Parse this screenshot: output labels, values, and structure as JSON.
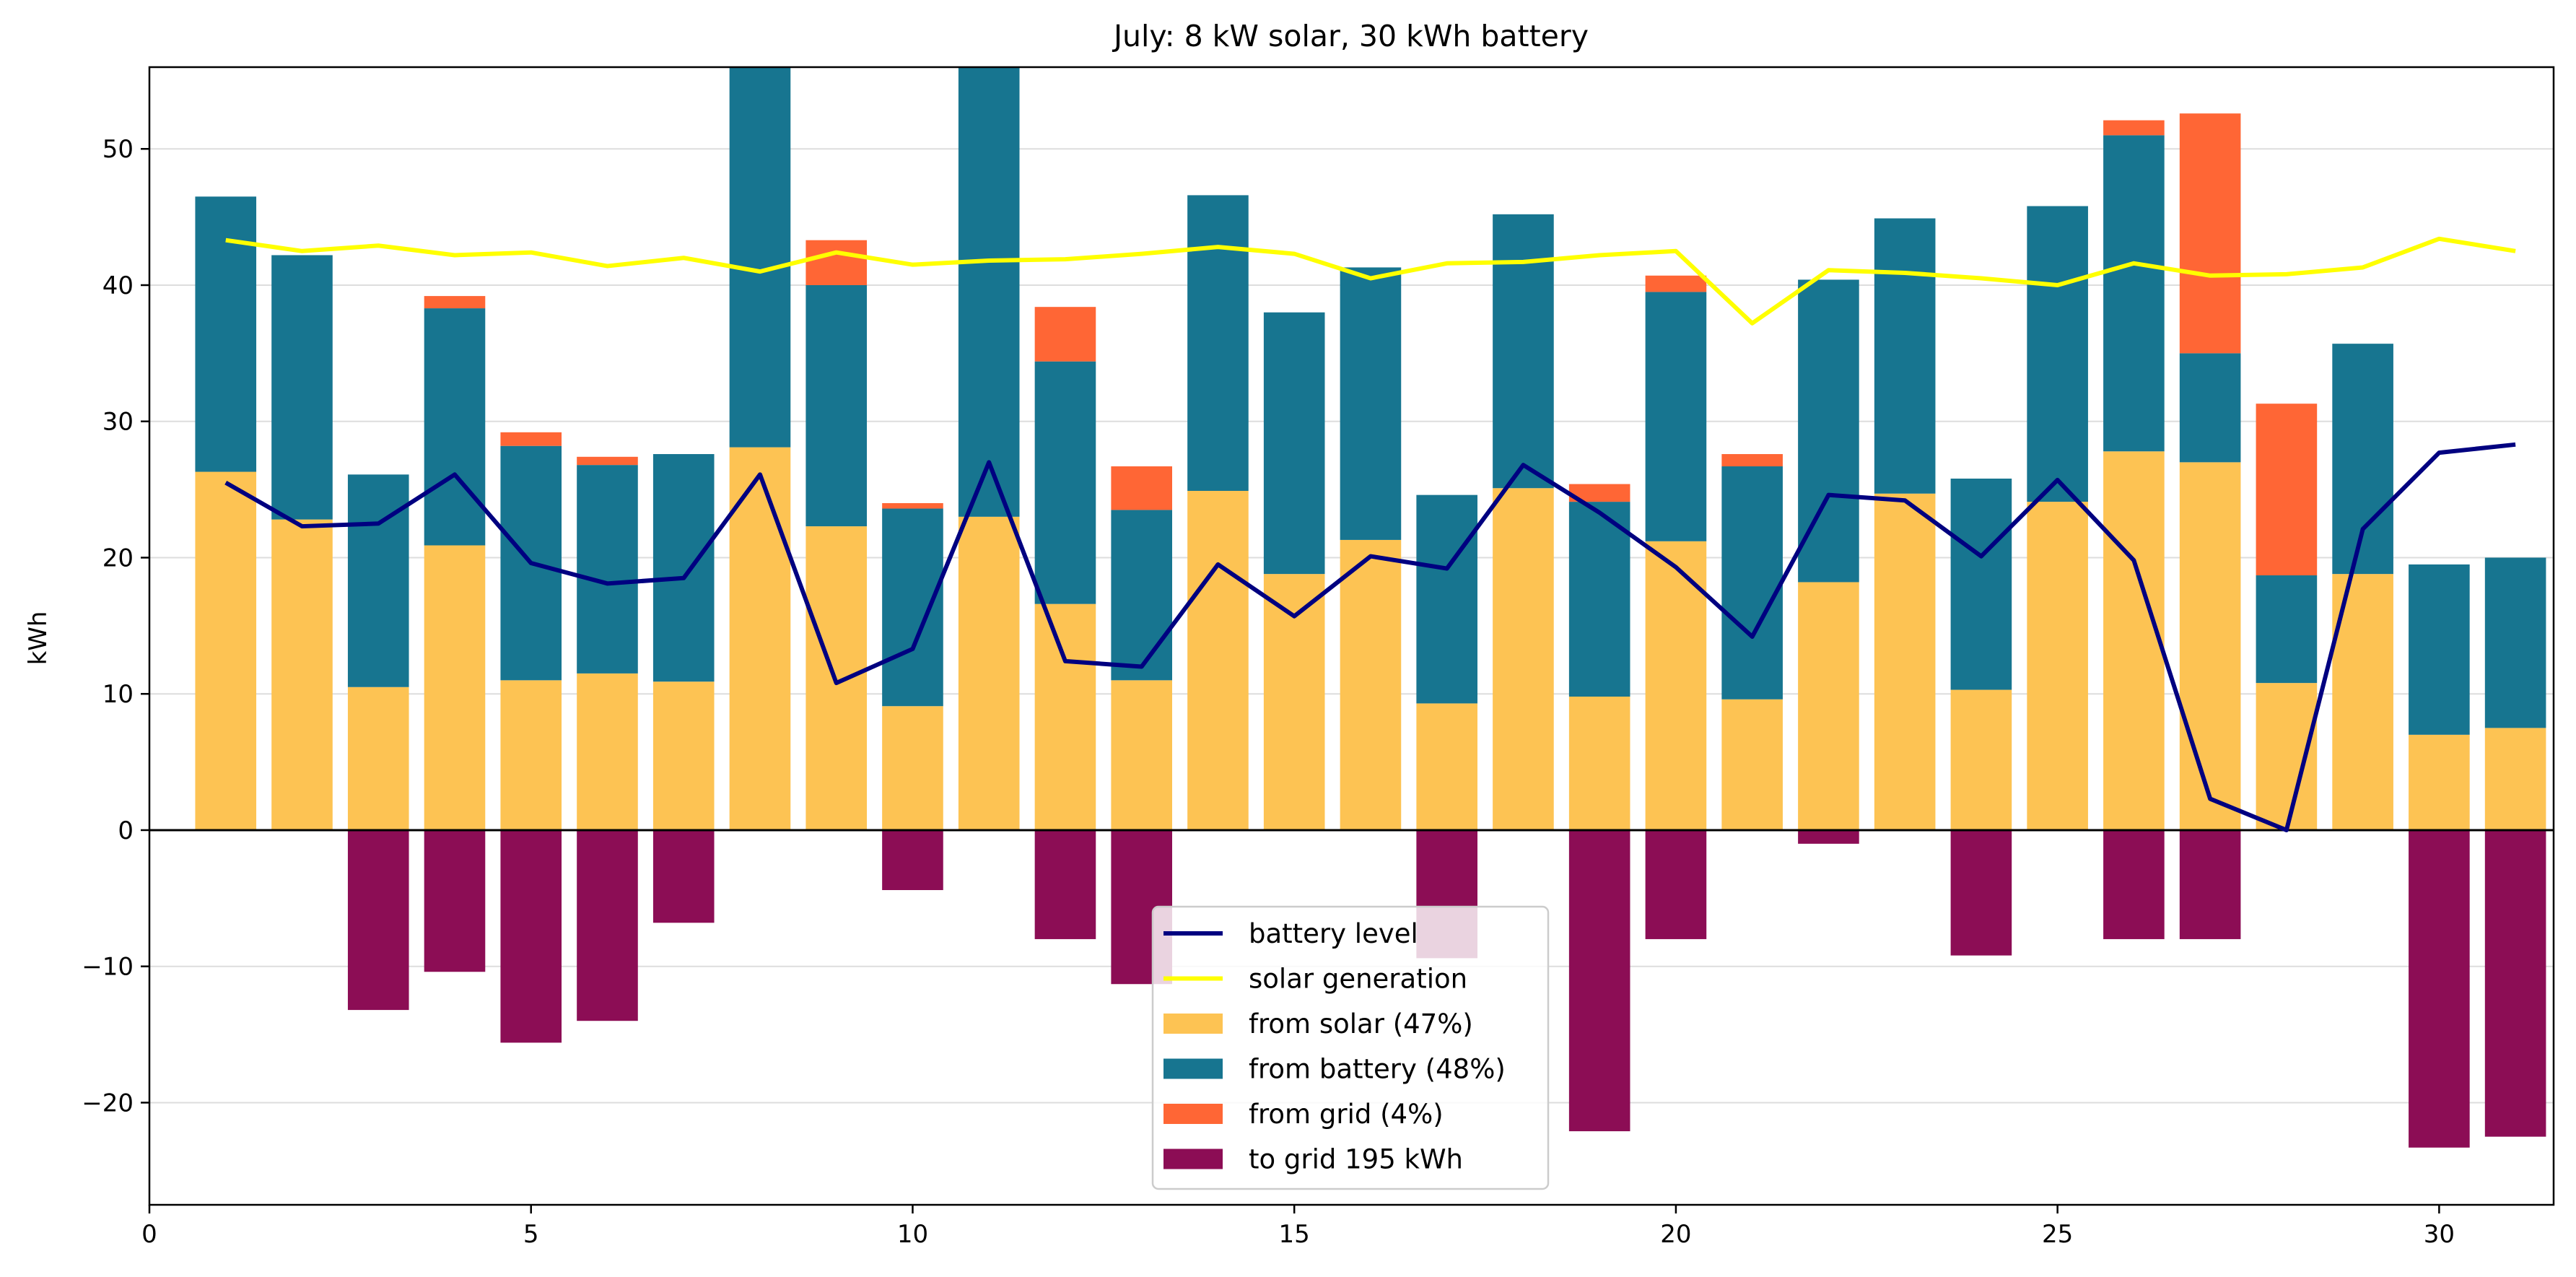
{
  "chart_data": {
    "type": "bar",
    "title": "July: 8 kW solar, 30 kWh battery",
    "xlabel": "",
    "ylabel": "kWh",
    "xlim": [
      0,
      31.5
    ],
    "ylim": [
      -27.5,
      56
    ],
    "xticks": [
      0,
      5,
      10,
      15,
      20,
      25,
      30
    ],
    "yticks": [
      -20,
      -10,
      0,
      10,
      20,
      30,
      40,
      50
    ],
    "grid": "horizontal",
    "legend_position": "bottom-center",
    "days": [
      1,
      2,
      3,
      4,
      5,
      6,
      7,
      8,
      9,
      10,
      11,
      12,
      13,
      14,
      15,
      16,
      17,
      18,
      19,
      20,
      21,
      22,
      23,
      24,
      25,
      26,
      27,
      28,
      29,
      30,
      31
    ],
    "series": [
      {
        "name": "from solar (47%)",
        "kind": "bar",
        "color": "#FDC353",
        "values": [
          26.3,
          22.8,
          10.5,
          20.9,
          11.0,
          11.5,
          10.9,
          28.1,
          22.3,
          9.1,
          23.0,
          16.6,
          11.0,
          24.9,
          18.8,
          21.3,
          9.3,
          25.1,
          9.8,
          21.2,
          9.6,
          18.2,
          24.7,
          10.3,
          24.1,
          27.8,
          27.0,
          10.8,
          18.8,
          7.0,
          7.5
        ]
      },
      {
        "name": "from battery (48%)",
        "kind": "bar",
        "color": "#177590",
        "values": [
          20.2,
          19.4,
          15.6,
          17.4,
          17.2,
          15.3,
          16.7,
          27.9,
          17.7,
          14.5,
          33.0,
          17.8,
          12.5,
          21.7,
          19.2,
          20.0,
          15.3,
          20.1,
          14.3,
          18.3,
          17.1,
          22.2,
          20.2,
          15.5,
          21.7,
          23.2,
          8.0,
          7.9,
          16.9,
          12.5,
          12.5
        ]
      },
      {
        "name": "from grid (4%)",
        "kind": "bar",
        "color": "#FF6635",
        "values": [
          0,
          0,
          0,
          0.9,
          1.0,
          0.6,
          0,
          0,
          3.3,
          0.4,
          0,
          4.0,
          3.2,
          0,
          0,
          0,
          0,
          0,
          1.3,
          1.2,
          0.9,
          0,
          0,
          0,
          0,
          1.1,
          17.6,
          12.6,
          0,
          0,
          0
        ]
      },
      {
        "name": "to grid 195 kWh",
        "kind": "bar",
        "color": "#8C0D55",
        "values": [
          0,
          0,
          -13.2,
          -10.4,
          -15.6,
          -14.0,
          -6.8,
          0,
          0,
          -4.4,
          0,
          -8.0,
          -11.3,
          0,
          0,
          0,
          -9.4,
          0,
          -22.1,
          -8.0,
          0,
          -1.0,
          0,
          -9.2,
          0,
          -8.0,
          -8.0,
          0,
          0,
          -23.3,
          -22.5
        ]
      },
      {
        "name": "battery level",
        "kind": "line",
        "color": "#000080",
        "values": [
          25.5,
          22.3,
          22.5,
          26.1,
          19.6,
          18.1,
          18.5,
          26.1,
          10.8,
          13.3,
          27.0,
          12.4,
          12.0,
          19.5,
          15.7,
          20.1,
          19.2,
          26.8,
          23.3,
          19.3,
          14.2,
          24.6,
          24.2,
          20.1,
          25.7,
          19.8,
          2.3,
          0.0,
          22.1,
          27.7,
          28.3
        ]
      },
      {
        "name": "solar generation",
        "kind": "line",
        "color": "#FFFF00",
        "values": [
          43.3,
          42.5,
          42.9,
          42.2,
          42.4,
          41.4,
          42.0,
          41.0,
          42.4,
          41.5,
          41.8,
          41.9,
          42.3,
          42.8,
          42.3,
          40.5,
          41.6,
          41.7,
          42.2,
          42.5,
          37.2,
          41.1,
          40.9,
          40.5,
          40.0,
          41.6,
          40.7,
          40.8,
          41.3,
          43.4,
          42.5
        ]
      }
    ],
    "legend_order": [
      "battery level",
      "solar generation",
      "from solar (47%)",
      "from battery (48%)",
      "from grid (4%)",
      "to grid 195 kWh"
    ]
  }
}
